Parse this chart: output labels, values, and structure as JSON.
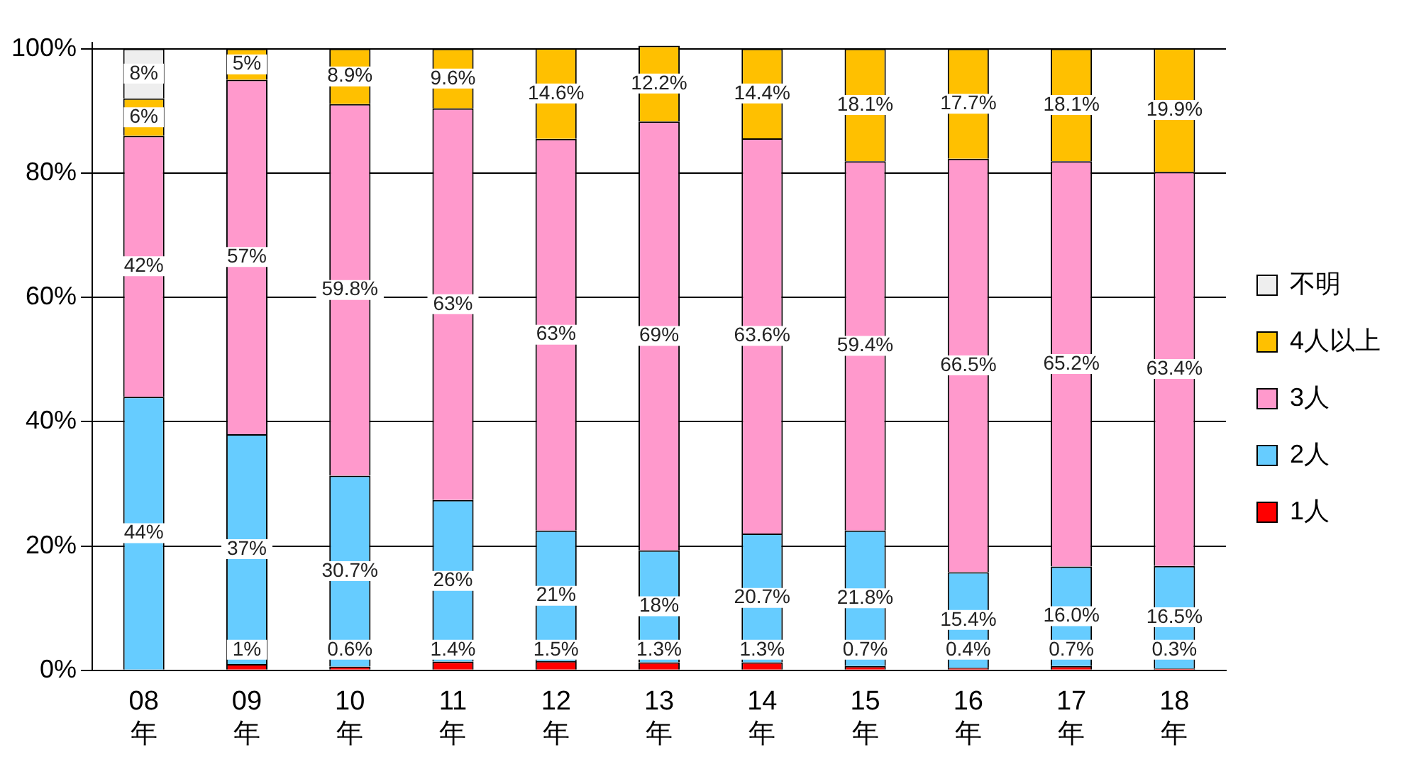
{
  "chart_data": {
    "type": "bar",
    "stacked": true,
    "categories": [
      "08年",
      "09年",
      "10年",
      "11年",
      "12年",
      "13年",
      "14年",
      "15年",
      "16年",
      "17年",
      "18年"
    ],
    "series": [
      {
        "name": "1人",
        "color": "#ff0000",
        "values": [
          null,
          1,
          0.6,
          1.4,
          1.5,
          1.3,
          1.3,
          0.7,
          0.4,
          0.7,
          0.3
        ],
        "value_labels": [
          null,
          "1%",
          "0.6%",
          "1.4%",
          "1.5%",
          "1.3%",
          "1.3%",
          "0.7%",
          "0.4%",
          "0.7%",
          "0.3%"
        ]
      },
      {
        "name": "2人",
        "color": "#66ccff",
        "values": [
          44,
          37,
          30.7,
          26,
          21,
          18,
          20.7,
          21.8,
          15.4,
          16.0,
          16.5
        ],
        "value_labels": [
          "44%",
          "37%",
          "30.7%",
          "26%",
          "21%",
          "18%",
          "20.7%",
          "21.8%",
          "15.4%",
          "16.0%",
          "16.5%"
        ]
      },
      {
        "name": "3人",
        "color": "#ff99cc",
        "values": [
          42,
          57,
          59.8,
          63,
          63,
          69,
          63.6,
          59.4,
          66.5,
          65.2,
          63.4
        ],
        "value_labels": [
          "42%",
          "57%",
          "59.8%",
          "63%",
          "63%",
          "69%",
          "63.6%",
          "59.4%",
          "66.5%",
          "65.2%",
          "63.4%"
        ]
      },
      {
        "name": "4人以上",
        "color": "#ffc000",
        "values": [
          6,
          5,
          8.9,
          9.6,
          14.6,
          12.2,
          14.4,
          18.1,
          17.7,
          18.1,
          19.9
        ],
        "value_labels": [
          "6%",
          "5%",
          "8.9%",
          "9.6%",
          "14.6%",
          "12.2%",
          "14.4%",
          "18.1%",
          "17.7%",
          "18.1%",
          "19.9%"
        ]
      },
      {
        "name": "不明",
        "color": "#eeeeee",
        "values": [
          8,
          null,
          null,
          null,
          null,
          null,
          null,
          null,
          null,
          null,
          null
        ],
        "value_labels": [
          "8%",
          null,
          null,
          null,
          null,
          null,
          null,
          null,
          null,
          null,
          null
        ]
      }
    ],
    "ylim": [
      0,
      101
    ],
    "yticks": [
      {
        "value": 0,
        "label": "0%"
      },
      {
        "value": 20,
        "label": "20%"
      },
      {
        "value": 40,
        "label": "40%"
      },
      {
        "value": 60,
        "label": "60%"
      },
      {
        "value": 80,
        "label": "80%"
      },
      {
        "value": 100,
        "label": "100%"
      }
    ],
    "grid": "y",
    "legend": "right"
  }
}
